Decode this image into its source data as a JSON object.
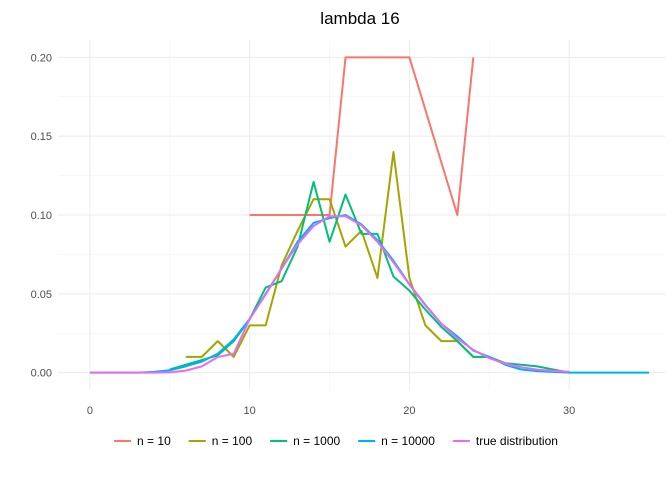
{
  "chart_data": {
    "type": "line",
    "title": "lambda 16",
    "xlabel": "",
    "ylabel": "",
    "xlim": [
      -2,
      36
    ],
    "ylim": [
      -0.011,
      0.211
    ],
    "x_ticks": [
      0,
      10,
      20,
      30
    ],
    "x_tick_labels": [
      "0",
      "10",
      "20",
      "30"
    ],
    "y_ticks": [
      0.0,
      0.05,
      0.1,
      0.15,
      0.2
    ],
    "y_tick_labels": [
      "0.00",
      "0.05",
      "0.10",
      "0.15",
      "0.20"
    ],
    "grid": true,
    "legend_position": "bottom",
    "series": [
      {
        "name": "n =  10",
        "color": "#F8766D",
        "x": [
          10,
          15,
          16,
          20,
          23,
          24
        ],
        "y": [
          0.1,
          0.1,
          0.2,
          0.2,
          0.1,
          0.2
        ]
      },
      {
        "name": "n =  100",
        "color": "#A3A500",
        "x": [
          6,
          7,
          8,
          9,
          10,
          11,
          12,
          13,
          14,
          15,
          16,
          17,
          18,
          19,
          20,
          21,
          22,
          23,
          24,
          25
        ],
        "y": [
          0.01,
          0.01,
          0.02,
          0.01,
          0.03,
          0.03,
          0.068,
          0.09,
          0.11,
          0.11,
          0.08,
          0.09,
          0.06,
          0.14,
          0.06,
          0.03,
          0.02,
          0.02,
          0.01,
          0.01
        ]
      },
      {
        "name": "n =  1000",
        "color": "#00BF7D",
        "x": [
          5,
          6,
          7,
          8,
          9,
          10,
          11,
          12,
          13,
          14,
          15,
          16,
          17,
          18,
          19,
          20,
          21,
          22,
          23,
          24,
          25,
          26,
          27,
          28,
          29,
          30
        ],
        "y": [
          0.002,
          0.005,
          0.008,
          0.011,
          0.02,
          0.034,
          0.054,
          0.058,
          0.08,
          0.121,
          0.083,
          0.113,
          0.088,
          0.088,
          0.061,
          0.052,
          0.04,
          0.029,
          0.02,
          0.01,
          0.01,
          0.006,
          0.005,
          0.004,
          0.002,
          0.0
        ]
      },
      {
        "name": "n =  10000",
        "color": "#00B0F6",
        "x": [
          0,
          1,
          2,
          3,
          4,
          5,
          6,
          7,
          8,
          9,
          10,
          11,
          12,
          13,
          14,
          15,
          16,
          17,
          18,
          19,
          20,
          21,
          22,
          23,
          24,
          25,
          26,
          27,
          28,
          29,
          30,
          31,
          32,
          33,
          34,
          35
        ],
        "y": [
          0,
          0,
          0,
          0,
          0.0005,
          0.0015,
          0.004,
          0.007,
          0.012,
          0.021,
          0.034,
          0.05,
          0.066,
          0.083,
          0.095,
          0.098,
          0.1,
          0.094,
          0.084,
          0.071,
          0.056,
          0.043,
          0.031,
          0.023,
          0.014,
          0.01,
          0.005,
          0.002,
          0.001,
          0.0005,
          0,
          0,
          0,
          0,
          0,
          0
        ]
      },
      {
        "name": "true distribution",
        "color": "#E76BF3",
        "x": [
          0,
          1,
          2,
          3,
          4,
          5,
          6,
          7,
          8,
          9,
          10,
          11,
          12,
          13,
          14,
          15,
          16,
          17,
          18,
          19,
          20,
          21,
          22,
          23,
          24,
          25,
          26,
          27,
          28,
          29,
          30
        ],
        "y": [
          0.0,
          0.0,
          0.0,
          0.0,
          0.0,
          0.0002,
          0.0013,
          0.004,
          0.0099,
          0.012,
          0.0341,
          0.0496,
          0.0661,
          0.0814,
          0.093,
          0.0992,
          0.0992,
          0.0934,
          0.083,
          0.0699,
          0.0559,
          0.0426,
          0.031,
          0.0216,
          0.0144,
          0.0092,
          0.0057,
          0.0034,
          0.0019,
          0.0011,
          0.0006
        ]
      }
    ]
  }
}
